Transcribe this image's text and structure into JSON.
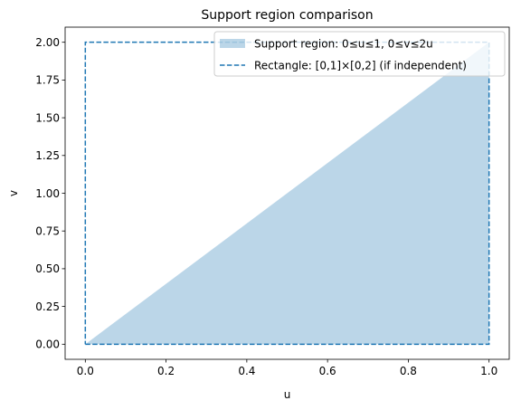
{
  "chart_data": {
    "type": "area",
    "title": "Support region comparison",
    "xlabel": "u",
    "ylabel": "v",
    "xlim": [
      -0.05,
      1.05
    ],
    "ylim": [
      -0.1,
      2.1
    ],
    "xticks": [
      0.0,
      0.2,
      0.4,
      0.6,
      0.8,
      1.0
    ],
    "xtick_labels": [
      "0.0",
      "0.2",
      "0.4",
      "0.6",
      "0.8",
      "1.0"
    ],
    "yticks": [
      0.0,
      0.25,
      0.5,
      0.75,
      1.0,
      1.25,
      1.5,
      1.75,
      2.0
    ],
    "ytick_labels": [
      "0.00",
      "0.25",
      "0.50",
      "0.75",
      "1.00",
      "1.25",
      "1.50",
      "1.75",
      "2.00"
    ],
    "grid": false,
    "legend_position": "top-right",
    "series": [
      {
        "name": "Support region: 0≤u≤1, 0≤v≤2u",
        "kind": "filled-area",
        "color": "#1f77b4",
        "alpha": 0.3,
        "points": [
          [
            0,
            0
          ],
          [
            1,
            2
          ],
          [
            1,
            0
          ]
        ]
      },
      {
        "name": "Rectangle: [0,1]×[0,2] (if independent)",
        "kind": "dashed-line",
        "color": "#1f77b4",
        "points": [
          [
            0,
            0
          ],
          [
            1,
            0
          ],
          [
            1,
            2
          ],
          [
            0,
            2
          ],
          [
            0,
            0
          ]
        ]
      }
    ]
  }
}
